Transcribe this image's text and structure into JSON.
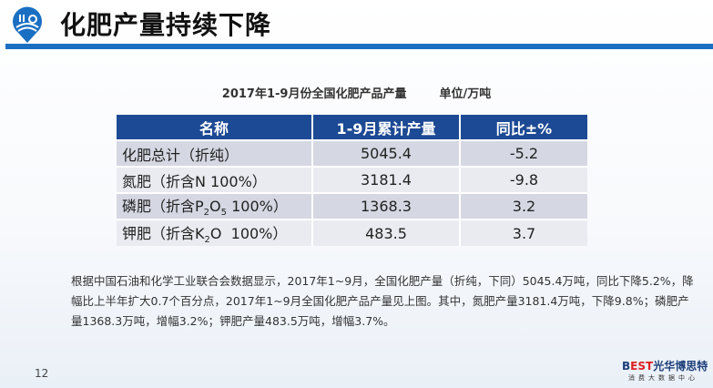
{
  "header": {
    "title": "化肥产量持续下降",
    "logo_icon": "farm-location-pin-icon",
    "accent": "#1a6fc2"
  },
  "caption": {
    "title": "2017年1-9月份全国化肥产品产量",
    "unit": "单位/万吨"
  },
  "table": {
    "headers": [
      "名称",
      "1-9月累计产量",
      "同比±%"
    ],
    "header_color": "#1d4a94",
    "rows": [
      {
        "name": "化肥总计（折纯）",
        "value": "5045.4",
        "yoy": "-5.2"
      },
      {
        "name": "氮肥（折含N 100%）",
        "value": "3181.4",
        "yoy": "-9.8"
      },
      {
        "name_pre": "磷肥（折含P",
        "sub1": "2",
        "mid": "O",
        "sub2": "5",
        "name_post": " 100%）",
        "value": "1368.3",
        "yoy": "3.2"
      },
      {
        "name_pre": "钾肥（折含K",
        "sub1": "2",
        "name_post": "O  100%）",
        "value": "483.5",
        "yoy": "3.7"
      }
    ]
  },
  "paragraph": "根据中国石油和化学工业联合会数据显示，2017年1~9月，全国化肥产量（折纯，下同）5045.4万吨，同比下降5.2%，降幅比上半年扩大0.7个百分点，2017年1~9月全国化肥产品产量见上图。其中，氮肥产量3181.4万吨，下降9.8%；磷肥产量1368.3万吨，增幅3.2%；钾肥产量483.5万吨，增幅3.7%。",
  "footer": {
    "page": "12",
    "brand_prefix": "B",
    "brand_est": "EST",
    "brand_name": "光华博思特",
    "brand_sub": "消费大数据中心"
  }
}
